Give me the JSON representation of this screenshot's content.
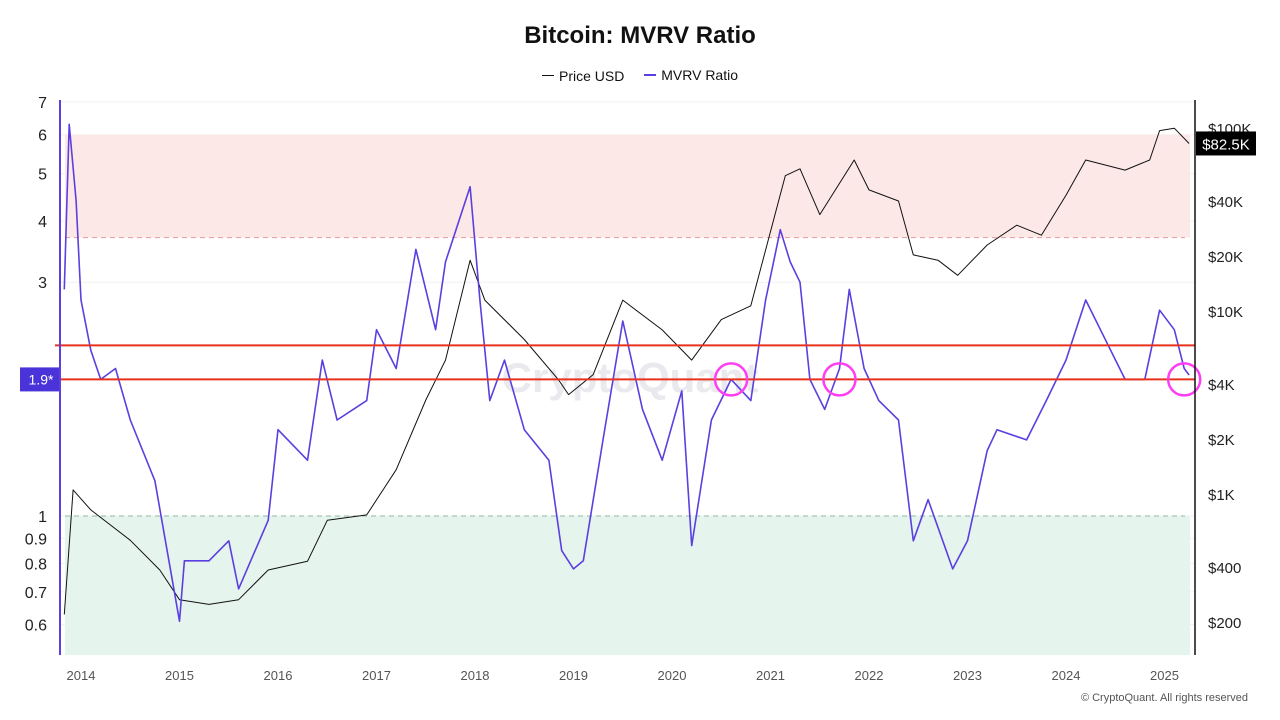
{
  "chart_data": {
    "type": "line",
    "title": "Bitcoin: MVRV Ratio",
    "legend_placement": "top-center",
    "y_left_scale": "log",
    "y_right_scale": "log",
    "ylim_left": [
      0.52,
      7
    ],
    "ylim_right": [
      100,
      130000
    ],
    "xlim": [
      2013.83,
      2025.35
    ],
    "x_ticks": [
      "2014",
      "2015",
      "2016",
      "2017",
      "2018",
      "2019",
      "2020",
      "2021",
      "2022",
      "2023",
      "2024",
      "2025"
    ],
    "y_left_ticks": [
      "0.6",
      "0.7",
      "0.8",
      "0.9",
      "1",
      "3",
      "4",
      "5",
      "6",
      "7"
    ],
    "y_left_tick_values": [
      0.6,
      0.7,
      0.8,
      0.9,
      1,
      3,
      4,
      5,
      6,
      7
    ],
    "y_right_ticks": [
      "$200",
      "$400",
      "$1K",
      "$2K",
      "$4K",
      "$10K",
      "$20K",
      "$40K",
      "$100K"
    ],
    "y_right_tick_values": [
      200,
      400,
      1000,
      2000,
      4000,
      10000,
      20000,
      40000,
      100000
    ],
    "bands": [
      {
        "from": 3.7,
        "to": 6,
        "color": "#fde8e8",
        "edge": "#e89a9a"
      },
      {
        "from": 0.52,
        "to": 1,
        "color": "#e6f4ee",
        "edge": "#8fb89f"
      }
    ],
    "reference_lines": [
      {
        "value": 2.23,
        "color": "#e8321e"
      },
      {
        "value": 1.9,
        "color": "#e8321e",
        "label": "1.9*"
      }
    ],
    "annotations": [
      {
        "x": 2020.6,
        "y": 1.9,
        "shape": "circle",
        "color": "#ff3df2"
      },
      {
        "x": 2021.7,
        "y": 1.9,
        "shape": "circle",
        "color": "#ff3df2"
      },
      {
        "x": 2025.2,
        "y": 1.9,
        "shape": "circle",
        "color": "#ff3df2"
      }
    ],
    "last_price_label": "$82.5K",
    "watermark": "CryptoQuant",
    "series": [
      {
        "name": "Price USD",
        "color": "#111111",
        "axis": "right",
        "x": [
          2013.83,
          2013.92,
          2014.1,
          2014.5,
          2014.8,
          2015.0,
          2015.3,
          2015.6,
          2015.9,
          2016.3,
          2016.5,
          2016.9,
          2017.2,
          2017.5,
          2017.7,
          2017.95,
          2018.1,
          2018.5,
          2018.85,
          2018.95,
          2019.2,
          2019.5,
          2019.9,
          2020.2,
          2020.5,
          2020.8,
          2020.95,
          2021.15,
          2021.3,
          2021.5,
          2021.85,
          2022.0,
          2022.3,
          2022.45,
          2022.7,
          2022.9,
          2023.2,
          2023.5,
          2023.75,
          2024.0,
          2024.2,
          2024.6,
          2024.85,
          2024.95,
          2025.1,
          2025.25
        ],
        "values": [
          220,
          1055,
          820,
          560,
          385,
          265,
          250,
          265,
          385,
          430,
          720,
          770,
          1360,
          3270,
          5400,
          19000,
          11500,
          7000,
          4200,
          3500,
          4500,
          11500,
          7900,
          5400,
          9000,
          10700,
          21600,
          55000,
          60000,
          33700,
          67000,
          46000,
          40000,
          20300,
          19000,
          15700,
          23000,
          29500,
          26000,
          43000,
          67000,
          59000,
          67000,
          97000,
          100000,
          82500
        ]
      },
      {
        "name": "MVRV Ratio",
        "color": "#5b3fe0",
        "axis": "left",
        "x": [
          2013.83,
          2013.88,
          2013.95,
          2014.0,
          2014.1,
          2014.2,
          2014.35,
          2014.5,
          2014.75,
          2015.0,
          2015.05,
          2015.3,
          2015.5,
          2015.6,
          2015.9,
          2016.0,
          2016.3,
          2016.45,
          2016.6,
          2016.9,
          2017.0,
          2017.2,
          2017.4,
          2017.6,
          2017.7,
          2017.95,
          2018.05,
          2018.15,
          2018.3,
          2018.5,
          2018.75,
          2018.88,
          2019.0,
          2019.1,
          2019.3,
          2019.5,
          2019.7,
          2019.9,
          2020.1,
          2020.2,
          2020.4,
          2020.6,
          2020.8,
          2020.95,
          2021.1,
          2021.2,
          2021.3,
          2021.4,
          2021.55,
          2021.7,
          2021.8,
          2021.95,
          2022.1,
          2022.3,
          2022.45,
          2022.6,
          2022.85,
          2023.0,
          2023.2,
          2023.3,
          2023.6,
          2023.8,
          2024.0,
          2024.2,
          2024.4,
          2024.6,
          2024.8,
          2024.95,
          2025.1,
          2025.2,
          2025.25
        ],
        "values": [
          2.9,
          6.3,
          4.4,
          2.76,
          2.18,
          1.9,
          2.0,
          1.57,
          1.18,
          0.61,
          0.81,
          0.81,
          0.89,
          0.71,
          0.98,
          1.5,
          1.3,
          2.08,
          1.57,
          1.72,
          2.4,
          2.0,
          3.5,
          2.4,
          3.3,
          4.7,
          2.76,
          1.72,
          2.08,
          1.5,
          1.3,
          0.85,
          0.78,
          0.81,
          1.43,
          2.5,
          1.65,
          1.3,
          1.8,
          0.87,
          1.57,
          1.9,
          1.72,
          2.76,
          3.84,
          3.3,
          3.0,
          1.9,
          1.65,
          2.0,
          2.9,
          2.0,
          1.72,
          1.57,
          0.89,
          1.08,
          0.78,
          0.89,
          1.36,
          1.5,
          1.43,
          1.72,
          2.08,
          2.76,
          2.29,
          1.9,
          1.9,
          2.63,
          2.4,
          2.0,
          1.94
        ]
      }
    ]
  },
  "footer": "© CryptoQuant. All rights reserved"
}
